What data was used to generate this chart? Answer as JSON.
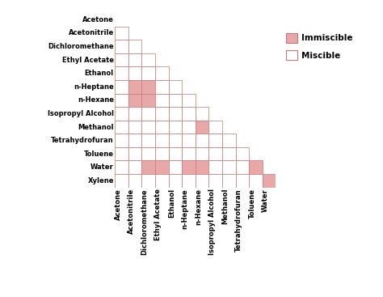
{
  "solvents": [
    "Acetone",
    "Acetonitrile",
    "Dichloromethane",
    "Ethyl Acetate",
    "Ethanol",
    "n-Heptane",
    "n-Hexane",
    "Isopropyl Alcohol",
    "Methanol",
    "Tetrahydrofuran",
    "Toluene",
    "Water",
    "Xylene"
  ],
  "immiscible_pairs": [
    [
      5,
      1
    ],
    [
      5,
      2
    ],
    [
      6,
      1
    ],
    [
      6,
      2
    ],
    [
      8,
      6
    ],
    [
      11,
      2
    ],
    [
      11,
      3
    ],
    [
      11,
      5
    ],
    [
      11,
      6
    ],
    [
      11,
      10
    ],
    [
      12,
      11
    ]
  ],
  "color_immiscible": "#e8a8a8",
  "color_miscible": "#ffffff",
  "color_border": "#c87878",
  "color_background": "#ffffff",
  "figsize": [
    4.74,
    3.67
  ],
  "dpi": 100
}
